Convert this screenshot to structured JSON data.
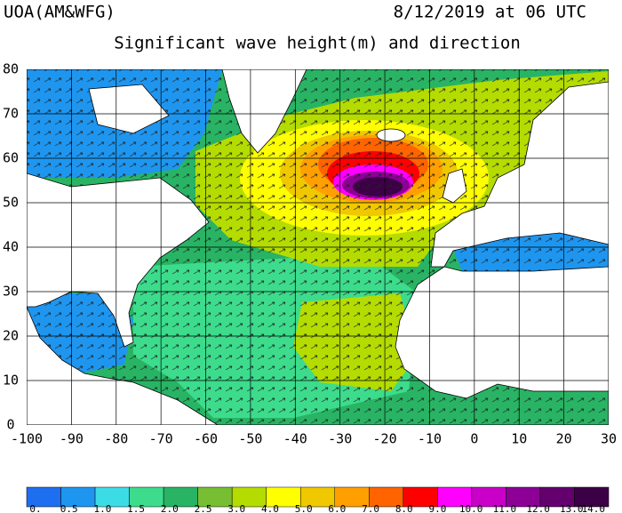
{
  "header": {
    "source": "UOA(AM&WFG)",
    "date": "8/12/2019 at 06 UTC",
    "title": "Significant wave height(m) and direction"
  },
  "map": {
    "xlim": [
      -100,
      30
    ],
    "ylim": [
      0,
      80
    ],
    "xticks": [
      -100,
      -90,
      -80,
      -70,
      -60,
      -50,
      -40,
      -30,
      -20,
      -10,
      0,
      10,
      20,
      30
    ],
    "yticks": [
      0,
      10,
      20,
      30,
      40,
      50,
      60,
      70,
      80
    ]
  },
  "colorbar": {
    "labels": [
      "0.",
      "0.5",
      "1.0",
      "1.5",
      "2.0",
      "2.5",
      "3.0",
      "4.0",
      "5.0",
      "6.0",
      "7.0",
      "8.0",
      "9.0",
      "10.0",
      "11.0",
      "12.0",
      "13.0",
      "14.0"
    ],
    "colors": [
      "#1e6ef0",
      "#1e96f0",
      "#3cdce6",
      "#3cdc8c",
      "#28b464",
      "#78be32",
      "#b4dc00",
      "#ffff00",
      "#f0c800",
      "#ffa000",
      "#ff6400",
      "#ff0000",
      "#ff00ff",
      "#c800c8",
      "#8c0096",
      "#64006e",
      "#3c0046"
    ]
  }
}
